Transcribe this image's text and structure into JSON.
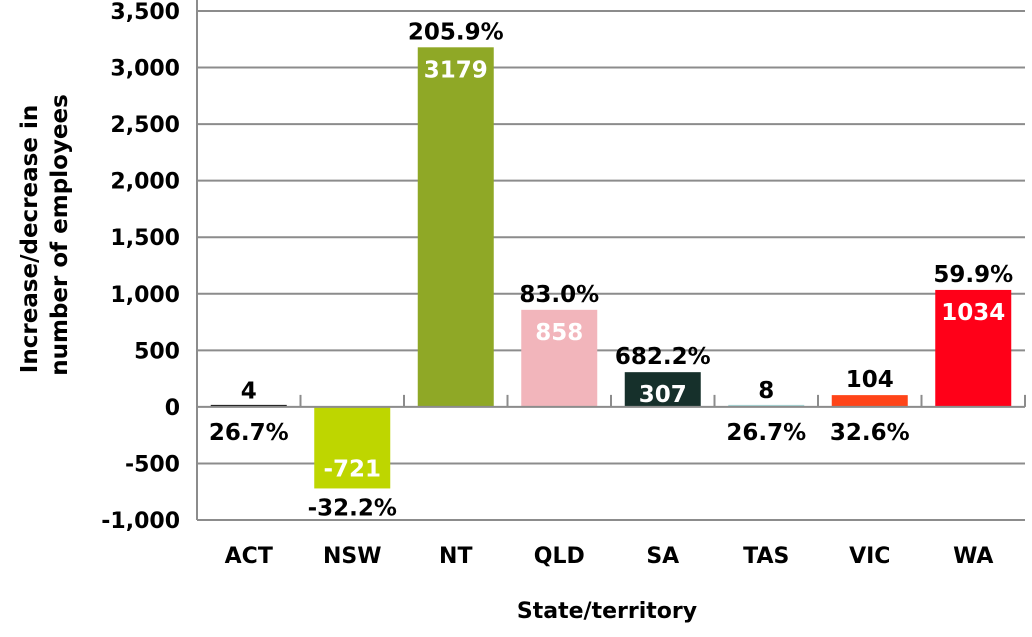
{
  "chart_data": {
    "type": "bar",
    "title": "",
    "xlabel": "State/territory",
    "ylabel": [
      "Increase/decrease in",
      "number of employees"
    ],
    "ylim": [
      -1000,
      3500
    ],
    "yticks": [
      -1000,
      -500,
      0,
      500,
      1000,
      1500,
      2000,
      2500,
      3000,
      3500
    ],
    "ytick_labels": [
      "-1,000",
      "-500",
      "0",
      "500",
      "1,000",
      "1,500",
      "2,000",
      "2,500",
      "3,000",
      "3,500"
    ],
    "grid": true,
    "legend": "none",
    "categories": [
      "ACT",
      "NSW",
      "NT",
      "QLD",
      "SA",
      "TAS",
      "VIC",
      "WA"
    ],
    "values": [
      4,
      -721,
      3179,
      858,
      307,
      8,
      104,
      1034
    ],
    "value_labels": [
      "4",
      "-721",
      "3179",
      "858",
      "307",
      "8",
      "104",
      "1034"
    ],
    "percent_labels": [
      "26.7%",
      "-32.2%",
      "205.9%",
      "83.0%",
      "682.2%",
      "26.7%",
      "32.6%",
      "59.9%"
    ],
    "colors": [
      "#1a1a1a",
      "#bed600",
      "#8fa826",
      "#f2b5bb",
      "#16302b",
      "#a8d8d8",
      "#ff4418",
      "#ff0018"
    ]
  }
}
